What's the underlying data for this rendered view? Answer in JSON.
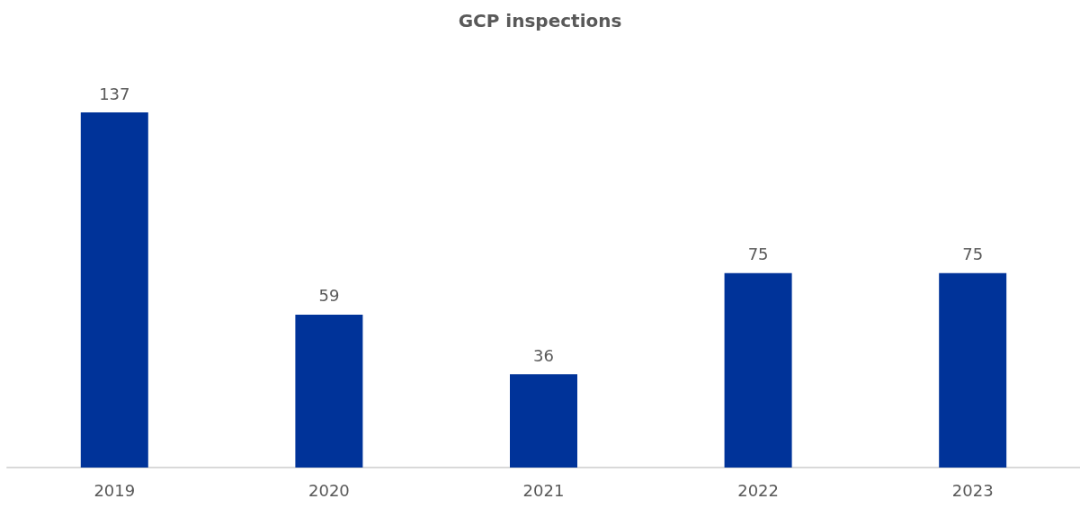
{
  "chart_data": {
    "type": "bar",
    "title": "GCP inspections",
    "categories": [
      "2019",
      "2020",
      "2021",
      "2022",
      "2023"
    ],
    "values": [
      137,
      59,
      36,
      75,
      75
    ],
    "color": "#003399",
    "data_labels": true
  }
}
